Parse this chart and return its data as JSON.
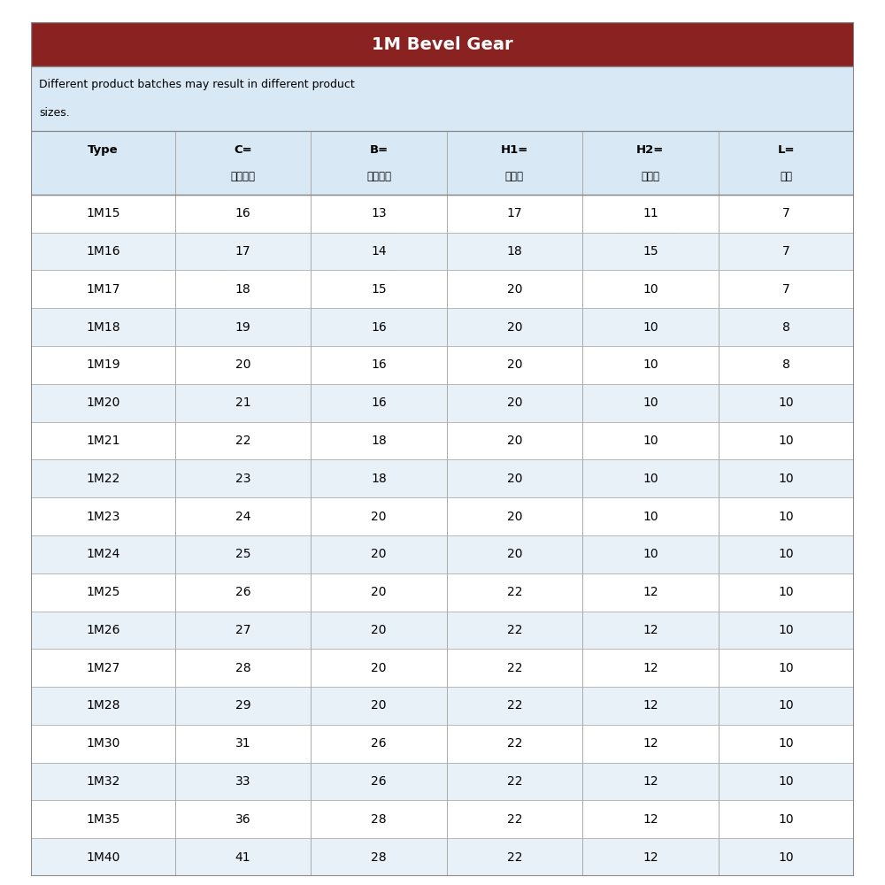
{
  "title": "1M Bevel Gear",
  "subtitle_line1": "Different product batches may result in different product",
  "subtitle_line2": "sizes.",
  "header_row1": [
    "Type",
    "C=",
    "B=",
    "H1=",
    "H2=",
    "L="
  ],
  "header_row2": [
    "",
    "最大外径",
    "台阶外径",
    "总长度",
    "台阶高",
    "齿长"
  ],
  "rows": [
    [
      "1M15",
      "16",
      "13",
      "17",
      "11",
      "7"
    ],
    [
      "1M16",
      "17",
      "14",
      "18",
      "15",
      "7"
    ],
    [
      "1M17",
      "18",
      "15",
      "20",
      "10",
      "7"
    ],
    [
      "1M18",
      "19",
      "16",
      "20",
      "10",
      "8"
    ],
    [
      "1M19",
      "20",
      "16",
      "20",
      "10",
      "8"
    ],
    [
      "1M20",
      "21",
      "16",
      "20",
      "10",
      "10"
    ],
    [
      "1M21",
      "22",
      "18",
      "20",
      "10",
      "10"
    ],
    [
      "1M22",
      "23",
      "18",
      "20",
      "10",
      "10"
    ],
    [
      "1M23",
      "24",
      "20",
      "20",
      "10",
      "10"
    ],
    [
      "1M24",
      "25",
      "20",
      "20",
      "10",
      "10"
    ],
    [
      "1M25",
      "26",
      "20",
      "22",
      "12",
      "10"
    ],
    [
      "1M26",
      "27",
      "20",
      "22",
      "12",
      "10"
    ],
    [
      "1M27",
      "28",
      "20",
      "22",
      "12",
      "10"
    ],
    [
      "1M28",
      "29",
      "20",
      "22",
      "12",
      "10"
    ],
    [
      "1M30",
      "31",
      "26",
      "22",
      "12",
      "10"
    ],
    [
      "1M32",
      "33",
      "26",
      "22",
      "12",
      "10"
    ],
    [
      "1M35",
      "36",
      "28",
      "22",
      "12",
      "10"
    ],
    [
      "1M40",
      "41",
      "28",
      "22",
      "12",
      "10"
    ]
  ],
  "title_bg": "#8B2222",
  "title_color": "#FFFFFF",
  "header_bg": "#D8E8F5",
  "row_bg_odd": "#FFFFFF",
  "row_bg_even": "#E8F0F8",
  "border_color": "#AAAAAA",
  "subtitle_bg": "#D8E8F5",
  "table_border": "#888888",
  "fig_bg": "#FFFFFF",
  "green": "#00AA00",
  "red": "#CC0000"
}
